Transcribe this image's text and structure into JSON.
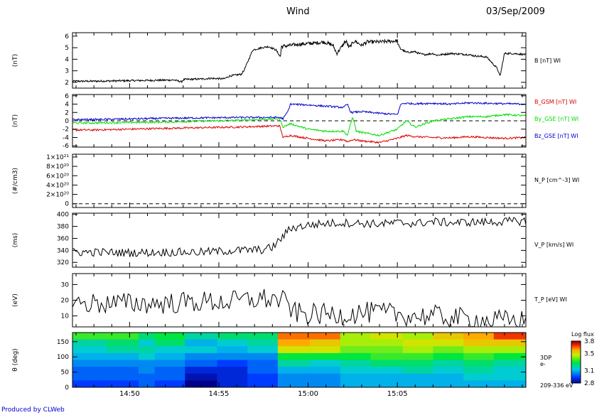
{
  "header": {
    "spacecraft": "Wind",
    "date": "03/Sep/2009"
  },
  "footer": {
    "credit": "Produced by CLWeb"
  },
  "colors": {
    "black": "#000000",
    "red": "#dd0000",
    "green": "#00dd00",
    "blue": "#0000cc"
  },
  "chart_data": [
    {
      "type": "line",
      "ylabel": "(nT)",
      "ylim": [
        1.5,
        6.3
      ],
      "yticks": [
        2,
        3,
        4,
        5,
        6
      ],
      "yticklabels": [
        "2",
        "3",
        "4",
        "5",
        "6"
      ],
      "series": [
        {
          "name": "B [nT] WI",
          "color": "#000000",
          "x": [
            0,
            4.5,
            4.9,
            5.05,
            6.2,
            6.5,
            7.3,
            7.6,
            8.25,
            8.4,
            8.9,
            9.4,
            9.8,
            10.2,
            10.45,
            10.5,
            11.5,
            12.4,
            12.9,
            13.4,
            13.6,
            13.9,
            14.05,
            14.15,
            14.3,
            14.6,
            15.0,
            15.3,
            16.0,
            17.0,
            17.1,
            17.5,
            18.0,
            18.2,
            18.5,
            19.0,
            19.2,
            20.0,
            21.0,
            21.3,
            22.0,
            22.6,
            22.75,
            23.0,
            23.5,
            24.2
          ],
          "values": [
            2.1,
            2.2,
            2.05,
            2.25,
            2.3,
            2.35,
            2.3,
            2.55,
            2.7,
            3.0,
            4.8,
            5.0,
            5.1,
            4.8,
            4.2,
            5.1,
            5.3,
            5.4,
            5.5,
            5.2,
            4.5,
            5.1,
            5.5,
            5.5,
            5.0,
            5.6,
            5.2,
            5.5,
            5.5,
            5.6,
            5.0,
            4.6,
            4.65,
            4.5,
            4.4,
            4.5,
            4.35,
            4.5,
            4.4,
            4.3,
            4.2,
            3.2,
            2.5,
            4.5,
            4.5,
            4.4
          ]
        }
      ],
      "right_labels": [
        "B [nT] WI"
      ]
    },
    {
      "type": "line",
      "ylabel": "(nT)",
      "ylim": [
        -6.3,
        6.3
      ],
      "yticks": [
        -6,
        -4,
        -2,
        0,
        2,
        4,
        6
      ],
      "yticklabels": [
        "-6",
        "-4",
        "-2",
        "0",
        "2",
        "4",
        "6"
      ],
      "zero_line": true,
      "series": [
        {
          "name": "B_GSM [nT] WI",
          "color": "#dd0000",
          "x": [
            0,
            4,
            8,
            10.4,
            10.6,
            11,
            12,
            13,
            14,
            14.2,
            14.5,
            15,
            16,
            17,
            17.5,
            18,
            19,
            20,
            21,
            22,
            23,
            24.2
          ],
          "values": [
            -2.2,
            -1.8,
            -1.5,
            -1.2,
            -4.0,
            -3.5,
            -4.2,
            -4.8,
            -4.5,
            -5.0,
            -4.5,
            -4.8,
            -5.2,
            -4.2,
            -3.5,
            -3.8,
            -4.0,
            -4.1,
            -3.8,
            -4.0,
            -4.2,
            -4.0
          ]
        },
        {
          "name": "By_GSE [nT] WI",
          "color": "#00dd00",
          "x": [
            0,
            4,
            8,
            10.4,
            10.6,
            11,
            12,
            13,
            14,
            14.2,
            14.5,
            14.7,
            15,
            16,
            17,
            17.5,
            18,
            19,
            20,
            21,
            22,
            23,
            24.2
          ],
          "values": [
            -0.5,
            -0.3,
            0.1,
            0.5,
            -1.5,
            -0.7,
            -2.0,
            -2.5,
            -2.5,
            -3.5,
            1.0,
            -2.5,
            -2.8,
            -3.5,
            -2.0,
            0.0,
            -1.5,
            0.0,
            0.5,
            1.0,
            1.0,
            1.5,
            1.2
          ]
        },
        {
          "name": "Bz_GSE [nT] WI",
          "color": "#0000cc",
          "x": [
            0,
            4,
            8,
            10.4,
            10.6,
            10.9,
            11.0,
            12,
            13,
            14,
            14.2,
            14.4,
            15,
            16,
            17,
            17.2,
            17.4,
            18,
            19,
            20,
            21,
            22,
            23,
            24.2
          ],
          "values": [
            0.3,
            0.6,
            0.8,
            0.8,
            0.5,
            2.5,
            4.0,
            3.8,
            3.5,
            3.2,
            4.0,
            2.0,
            2.2,
            1.8,
            1.5,
            4.0,
            4.2,
            4.1,
            4.2,
            4.0,
            4.3,
            4.2,
            4.1,
            4.0
          ]
        }
      ],
      "right_labels": [
        "B_GSM [nT] WI",
        "By_GSE [nT] WI",
        "Bz_GSE [nT] WI"
      ]
    },
    {
      "type": "line",
      "ylabel": "(#/cm3)",
      "ylim": [
        -8e+19,
        1.06e+21
      ],
      "yticks": [
        0,
        2e+20,
        4e+20,
        6e+20,
        8e+20,
        1e+21
      ],
      "yticklabels": [
        "0",
        "2×10²⁰",
        "4×10²⁰",
        "6×10²⁰",
        "8×10²⁰",
        "1×10²¹"
      ],
      "zero_line": true,
      "series": [],
      "right_labels": [
        "N_P [cm^-3] WI"
      ]
    },
    {
      "type": "line",
      "ylabel": "(ms)",
      "ylim": [
        312,
        402
      ],
      "yticks": [
        320,
        340,
        360,
        380,
        400
      ],
      "yticklabels": [
        "320",
        "340",
        "360",
        "380",
        "400"
      ],
      "series": [
        {
          "name": "V_P [km/s] WI",
          "color": "#000000",
          "x": [
            0,
            2,
            4,
            6,
            8,
            9.5,
            10.0,
            10.5,
            11.0,
            12,
            13,
            14,
            15,
            16,
            17,
            18,
            19,
            20,
            21,
            22,
            23,
            24.2
          ],
          "values": [
            337,
            336,
            337,
            337,
            340,
            341,
            345,
            360,
            377,
            382,
            385,
            386,
            385,
            384,
            386,
            385,
            388,
            386,
            387,
            387,
            388,
            389
          ]
        }
      ],
      "right_labels": [
        "V_P [km/s] WI"
      ]
    },
    {
      "type": "line",
      "ylabel": "(eV)",
      "ylim": [
        3,
        37
      ],
      "yticks": [
        10,
        20,
        30
      ],
      "yticklabels": [
        "10",
        "20",
        "30"
      ],
      "series": [
        {
          "name": "T_P [eV] WI",
          "color": "#000000",
          "x": [
            0,
            2,
            4,
            6,
            7.5,
            8.5,
            9.5,
            10.5,
            10.9,
            11.2,
            12,
            13,
            14,
            15,
            16,
            17,
            18,
            19,
            20,
            21,
            22,
            23,
            24.2
          ],
          "values": [
            18,
            18,
            18,
            19,
            19,
            20,
            21,
            20,
            17,
            12,
            11,
            11,
            11,
            12,
            12,
            11,
            10,
            10,
            9,
            8,
            7,
            7,
            7
          ]
        }
      ],
      "right_labels": [
        "T_P [eV] WI"
      ]
    },
    {
      "type": "heatmap",
      "ylabel": "θ (deg)",
      "ylim": [
        0,
        180
      ],
      "yticks": [
        0,
        50,
        100,
        150
      ],
      "yticklabels": [
        "0",
        "50",
        "100",
        "150"
      ],
      "x_edges": [
        -1.2,
        0.7,
        2.5,
        3.4,
        5.1,
        6.9,
        8.6,
        10.3,
        12.1,
        13.8,
        15.5,
        17.3,
        19.0,
        20.7,
        22.4,
        24.2
      ],
      "rows_top_to_bottom_cols": 15,
      "values": [
        [
          3.35,
          3.35,
          3.25,
          3.3,
          3.2,
          3.25,
          3.25,
          3.65,
          3.65,
          3.45,
          3.5,
          3.45,
          3.55,
          3.6,
          3.7
        ],
        [
          3.2,
          3.25,
          3.15,
          3.25,
          3.1,
          3.15,
          3.2,
          3.6,
          3.55,
          3.45,
          3.45,
          3.5,
          3.5,
          3.55,
          3.55
        ],
        [
          3.15,
          3.2,
          3.2,
          3.15,
          3.15,
          3.1,
          3.15,
          3.5,
          3.5,
          3.4,
          3.4,
          3.45,
          3.4,
          3.45,
          3.45
        ],
        [
          3.1,
          3.1,
          3.15,
          3.1,
          3.05,
          3.05,
          3.05,
          3.3,
          3.3,
          3.3,
          3.35,
          3.35,
          3.3,
          3.35,
          3.3
        ],
        [
          3.05,
          3.05,
          3.05,
          3.05,
          3.0,
          2.95,
          3.0,
          3.2,
          3.15,
          3.2,
          3.25,
          3.25,
          3.2,
          3.25,
          3.2
        ],
        [
          3.0,
          3.0,
          3.05,
          3.0,
          2.9,
          2.9,
          3.0,
          3.1,
          3.1,
          3.15,
          3.15,
          3.2,
          3.15,
          3.2,
          3.15
        ],
        [
          3.0,
          3.0,
          3.0,
          3.0,
          2.85,
          2.9,
          2.95,
          3.05,
          3.05,
          3.1,
          3.1,
          3.1,
          3.1,
          3.15,
          3.15
        ],
        [
          2.95,
          2.95,
          3.0,
          2.95,
          2.8,
          2.9,
          2.95,
          3.05,
          3.05,
          3.1,
          3.1,
          3.1,
          3.1,
          3.1,
          3.1
        ]
      ],
      "right_labels": [
        "3DP",
        "e-",
        "209-336 eV"
      ],
      "colorbar": {
        "title": "Log flux",
        "min": 2.8,
        "max": 3.8,
        "ticks": [
          2.8,
          3.1,
          3.5,
          3.8
        ],
        "ticklabels": [
          "2.8",
          "3.1",
          "3.5",
          "3.8"
        ]
      }
    }
  ],
  "time_axis": {
    "ticks": [
      2,
      7,
      12,
      17
    ],
    "ticklabels": [
      "14:50",
      "14:55",
      "15:00",
      "15:05"
    ],
    "minor_step": 1
  }
}
